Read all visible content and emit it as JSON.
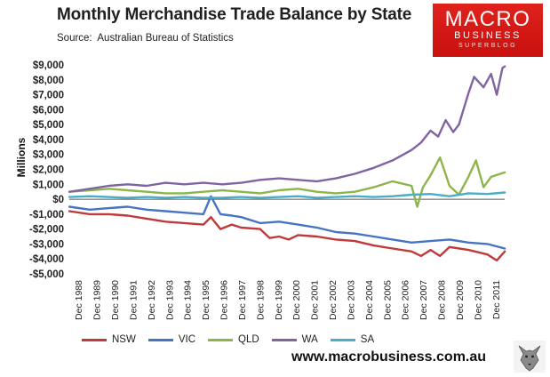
{
  "header": {
    "title": "Monthly Merchandise Trade Balance by State",
    "source": "Source:  Australian Bureau of Statistics"
  },
  "logo": {
    "line1": "MACRO",
    "line2": "BUSINESS",
    "line3": "SUPERBLOG"
  },
  "footer": {
    "url": "www.macrobusiness.com.au"
  },
  "chart_data": {
    "type": "line",
    "title": "Monthly Merchandise Trade Balance by State",
    "xlabel": "",
    "ylabel": "Millions",
    "ylim": [
      -5000,
      9000
    ],
    "yticks": [
      9000,
      8000,
      7000,
      6000,
      5000,
      4000,
      3000,
      2000,
      1000,
      0,
      -1000,
      -2000,
      -3000,
      -4000,
      -5000
    ],
    "ytick_labels": [
      "$9,000",
      "$8,000",
      "$7,000",
      "$6,000",
      "$5,000",
      "$4,000",
      "$3,000",
      "$2,000",
      "$1,000",
      "$0",
      "-$1,000",
      "-$2,000",
      "-$3,000",
      "-$4,000",
      "-$5,000"
    ],
    "xlim": [
      1988.917,
      2011.917
    ],
    "x_tick_labels": [
      "Dec 1988",
      "Dec 1989",
      "Dec 1990",
      "Dec 1991",
      "Dec 1992",
      "Dec 1993",
      "Dec 1994",
      "Dec 1995",
      "Dec 1996",
      "Dec 1997",
      "Dec 1998",
      "Dec 1999",
      "Dec 2000",
      "Dec 2001",
      "Dec 2002",
      "Dec 2003",
      "Dec 2004",
      "Dec 2005",
      "Dec 2006",
      "Dec 2007",
      "Dec 2008",
      "Dec 2009",
      "Dec 2010",
      "Dec 2011"
    ],
    "grid": false,
    "legend_position": "bottom-left",
    "series": [
      {
        "name": "NSW",
        "color": "#c0393b",
        "x": [
          1988.92,
          1990.0,
          1991.0,
          1992.0,
          1993.0,
          1994.0,
          1995.0,
          1996.0,
          1996.4,
          1996.9,
          1997.5,
          1998.0,
          1999.0,
          1999.5,
          2000.0,
          2000.5,
          2001.0,
          2002.0,
          2003.0,
          2004.0,
          2005.0,
          2006.0,
          2007.0,
          2007.5,
          2008.0,
          2008.5,
          2009.0,
          2010.0,
          2011.0,
          2011.5,
          2011.92
        ],
        "values": [
          -800,
          -1000,
          -1000,
          -1100,
          -1300,
          -1500,
          -1600,
          -1700,
          -1200,
          -2000,
          -1700,
          -1900,
          -2000,
          -2600,
          -2500,
          -2700,
          -2400,
          -2500,
          -2700,
          -2800,
          -3100,
          -3300,
          -3500,
          -3800,
          -3400,
          -3800,
          -3200,
          -3400,
          -3700,
          -4100,
          -3500
        ]
      },
      {
        "name": "VIC",
        "color": "#4674c4",
        "x": [
          1988.92,
          1990.0,
          1991.0,
          1992.0,
          1993.0,
          1994.0,
          1995.0,
          1996.0,
          1996.4,
          1996.9,
          1997.5,
          1998.0,
          1999.0,
          2000.0,
          2001.0,
          2002.0,
          2003.0,
          2004.0,
          2005.0,
          2006.0,
          2007.0,
          2008.0,
          2009.0,
          2010.0,
          2011.0,
          2011.92
        ],
        "values": [
          -500,
          -700,
          -600,
          -500,
          -700,
          -800,
          -900,
          -1000,
          200,
          -1000,
          -1100,
          -1200,
          -1600,
          -1500,
          -1700,
          -1900,
          -2200,
          -2300,
          -2500,
          -2700,
          -2900,
          -2800,
          -2700,
          -2900,
          -3000,
          -3300
        ]
      },
      {
        "name": "QLD",
        "color": "#8db54b",
        "x": [
          1988.92,
          1990.0,
          1991.0,
          1992.0,
          1993.0,
          1994.0,
          1995.0,
          1996.0,
          1997.0,
          1998.0,
          1999.0,
          2000.0,
          2001.0,
          2002.0,
          2003.0,
          2004.0,
          2005.0,
          2006.0,
          2007.0,
          2007.3,
          2007.6,
          2008.0,
          2008.5,
          2009.0,
          2009.5,
          2010.0,
          2010.4,
          2010.8,
          2011.2,
          2011.92
        ],
        "values": [
          500,
          600,
          700,
          600,
          500,
          400,
          400,
          500,
          600,
          500,
          400,
          600,
          700,
          500,
          400,
          500,
          800,
          1200,
          900,
          -500,
          800,
          1600,
          2800,
          900,
          300,
          1500,
          2600,
          800,
          1500,
          1800
        ]
      },
      {
        "name": "WA",
        "color": "#8064a2",
        "x": [
          1988.92,
          1990.0,
          1991.0,
          1992.0,
          1993.0,
          1994.0,
          1995.0,
          1996.0,
          1997.0,
          1998.0,
          1999.0,
          2000.0,
          2001.0,
          2002.0,
          2003.0,
          2004.0,
          2005.0,
          2006.0,
          2007.0,
          2007.5,
          2008.0,
          2008.4,
          2008.8,
          2009.2,
          2009.5,
          2010.0,
          2010.3,
          2010.8,
          2011.2,
          2011.5,
          2011.8,
          2011.92
        ],
        "values": [
          500,
          700,
          900,
          1000,
          900,
          1100,
          1000,
          1100,
          1000,
          1100,
          1300,
          1400,
          1300,
          1200,
          1400,
          1700,
          2100,
          2600,
          3300,
          3800,
          4600,
          4200,
          5300,
          4500,
          5000,
          7100,
          8200,
          7500,
          8400,
          7000,
          8800,
          8900
        ]
      },
      {
        "name": "SA",
        "color": "#4bacc6",
        "x": [
          1988.92,
          1990.0,
          1991.0,
          1992.0,
          1993.0,
          1994.0,
          1995.0,
          1996.0,
          1997.0,
          1998.0,
          1999.0,
          2000.0,
          2001.0,
          2002.0,
          2003.0,
          2004.0,
          2005.0,
          2006.0,
          2007.0,
          2008.0,
          2009.0,
          2010.0,
          2011.0,
          2011.92
        ],
        "values": [
          150,
          200,
          150,
          100,
          150,
          100,
          150,
          100,
          100,
          150,
          100,
          150,
          200,
          100,
          150,
          200,
          150,
          200,
          300,
          350,
          200,
          400,
          350,
          450
        ]
      }
    ]
  }
}
